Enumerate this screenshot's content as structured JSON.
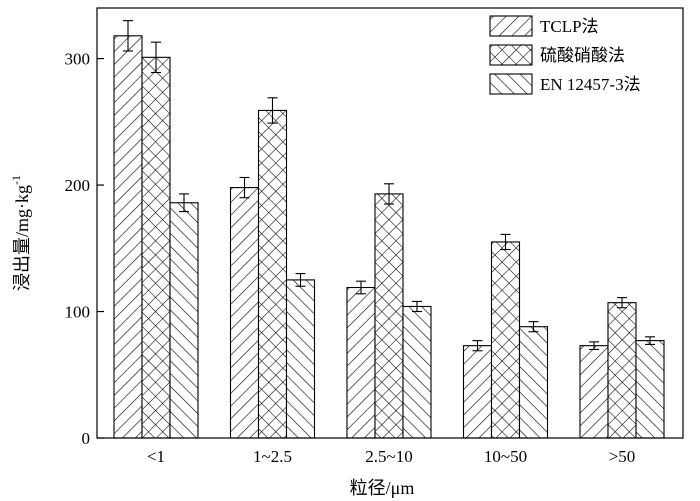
{
  "chart_data": {
    "type": "bar",
    "title": "",
    "xlabel": "粒径/μm",
    "ylabel": "浸出量/mg·kg",
    "ylabel_sup": "-1",
    "categories": [
      "<1",
      "1~2.5",
      "2.5~10",
      "10~50",
      ">50"
    ],
    "ylim": [
      0,
      340
    ],
    "yticks": [
      0,
      100,
      200,
      300
    ],
    "legend_position": "top-right",
    "grid": false,
    "series": [
      {
        "name": "TCLP法",
        "pattern": "hatch-forward",
        "values": [
          318,
          198,
          119,
          73,
          73
        ],
        "errors": [
          12,
          8,
          5,
          4,
          3
        ]
      },
      {
        "name": "硫酸硝酸法",
        "pattern": "crosshatch",
        "values": [
          301,
          259,
          193,
          155,
          107
        ],
        "errors": [
          12,
          10,
          8,
          6,
          4
        ]
      },
      {
        "name": "EN 12457-3法",
        "pattern": "hatch-back",
        "values": [
          186,
          125,
          104,
          88,
          77
        ],
        "errors": [
          7,
          5,
          4,
          4,
          3
        ]
      }
    ]
  }
}
